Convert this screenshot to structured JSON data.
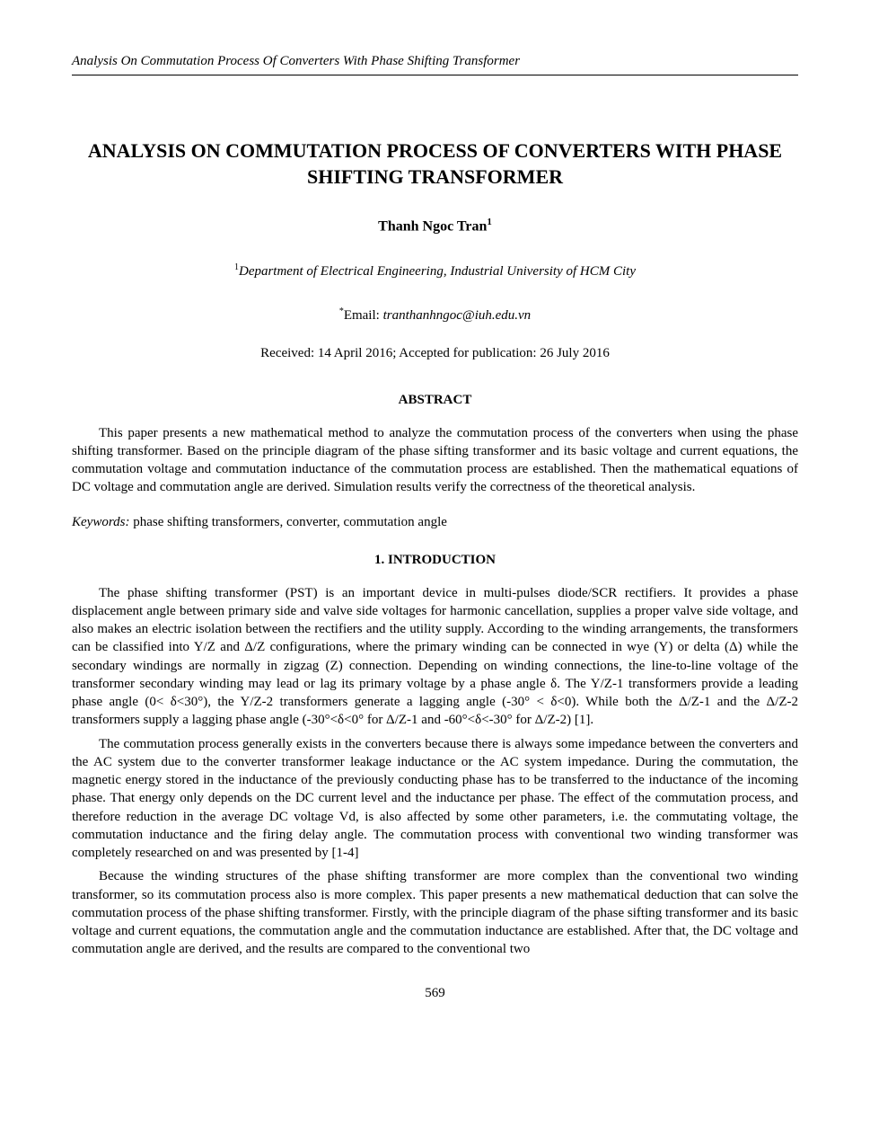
{
  "header": {
    "running_title": "Analysis On Commutation Process Of Converters With Phase Shifting Transformer"
  },
  "title": "ANALYSIS ON COMMUTATION PROCESS OF CONVERTERS WITH PHASE SHIFTING TRANSFORMER",
  "author": {
    "name": "Thanh Ngoc Tran",
    "superscript": "1"
  },
  "affiliation": {
    "superscript": "1",
    "text": "Department of Electrical Engineering, Industrial University of HCM City"
  },
  "email": {
    "superscript": "*",
    "label": "Email: ",
    "address": "tranthanhngoc@iuh.edu.vn"
  },
  "dates": "Received: 14 April 2016; Accepted for publication: 26 July 2016",
  "abstract": {
    "heading": "ABSTRACT",
    "text": "This paper presents a new mathematical method to analyze the commutation process of the converters when using the phase shifting transformer. Based on the principle diagram of the phase sifting transformer and its basic voltage and current equations, the commutation voltage and commutation inductance of the commutation process are established. Then the mathematical equations of DC voltage and commutation angle are derived. Simulation results verify the correctness of the theoretical analysis."
  },
  "keywords": {
    "label": "Keywords:",
    "text": " phase shifting transformers, converter, commutation angle"
  },
  "section1": {
    "heading": "1.   INTRODUCTION",
    "para1": "The phase shifting transformer (PST) is an important device in multi-pulses diode/SCR rectifiers. It provides a phase displacement angle between primary side and valve side voltages for harmonic cancellation, supplies a proper valve side voltage, and also makes an electric isolation between the rectifiers and the utility supply. According to the winding arrangements, the transformers can be classified into Y/Z and Δ/Z configurations, where the primary winding can be connected in wye (Y) or delta (Δ) while the secondary windings are normally in zigzag (Z) connection. Depending on winding connections, the line-to-line voltage of the transformer secondary winding may lead or lag its primary voltage by a phase angle δ. The Y/Z-1 transformers provide a leading phase angle (0< δ<30°), the Y/Z-2 transformers generate a lagging angle (-30° < δ<0). While both the Δ/Z-1 and the Δ/Z-2 transformers supply a lagging phase angle (-30°<δ<0° for Δ/Z-1 and -60°<δ<-30° for Δ/Z-2) [1].",
    "para2": "The commutation process generally exists in the converters because there is always some impedance between the converters and the AC system due to the converter transformer leakage inductance or the AC system impedance. During the commutation, the magnetic energy stored in the inductance of the previously conducting phase has to be transferred to the inductance of the incoming phase. That energy only depends on the DC current level and the inductance per phase. The effect of the commutation process, and therefore reduction in the average DC voltage Vd, is also affected by some other parameters, i.e. the commutating voltage, the commutation inductance and the firing delay angle. The commutation process with conventional two winding transformer was completely researched on and was presented by [1-4]",
    "para3": "Because the winding structures of the phase shifting transformer are more complex than the conventional two winding transformer, so its commutation process also is more complex. This paper presents a new mathematical deduction that can solve the commutation process of the phase shifting transformer. Firstly, with the principle diagram of the phase sifting transformer and its basic voltage and current equations, the commutation angle and the commutation inductance are established. After that, the DC voltage and commutation angle are derived, and the results are compared to the conventional two"
  },
  "page_number": "569"
}
